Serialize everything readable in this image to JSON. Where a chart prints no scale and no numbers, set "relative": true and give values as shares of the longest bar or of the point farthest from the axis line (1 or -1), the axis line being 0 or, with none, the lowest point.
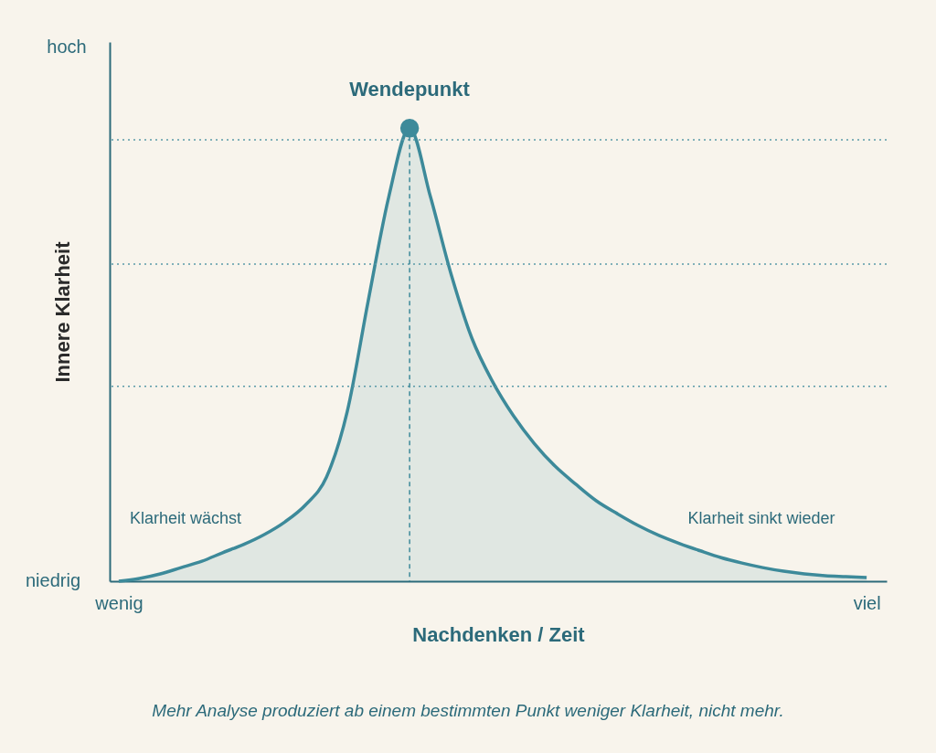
{
  "chart_data": {
    "type": "area",
    "relative": true,
    "xlabel": "Nachdenken / Zeit",
    "ylabel": "Innere Klarheit",
    "categories": [
      "wenig",
      null,
      null,
      null,
      null,
      null,
      null,
      null,
      null,
      null,
      null,
      null,
      null,
      null,
      null,
      null,
      null,
      null,
      null,
      null,
      null,
      null,
      null,
      null,
      null,
      null,
      null,
      null,
      null,
      null,
      null,
      null,
      null,
      null,
      null,
      null,
      "viel"
    ],
    "series": [
      {
        "color": "#3d8a9a",
        "values": [
          0,
          0.006,
          0.016,
          0.03,
          0.044,
          0.063,
          0.081,
          0.103,
          0.131,
          0.169,
          0.23,
          0.375,
          0.617,
          0.849,
          1.0,
          0.849,
          0.677,
          0.536,
          0.44,
          0.365,
          0.304,
          0.254,
          0.214,
          0.177,
          0.149,
          0.123,
          0.101,
          0.083,
          0.067,
          0.052,
          0.04,
          0.03,
          0.022,
          0.016,
          0.012,
          0.01,
          0.008
        ]
      },
      {
        "type": "lollipop",
        "color": "#3d8a9a",
        "line_style": "dashed",
        "marker": "circle",
        "values": [
          null,
          null,
          null,
          null,
          null,
          null,
          null,
          null,
          null,
          null,
          null,
          null,
          null,
          null,
          1.0,
          null,
          null,
          null,
          null,
          null,
          null,
          null,
          null,
          null,
          null,
          null,
          null,
          null,
          null,
          null,
          null,
          null,
          null,
          null,
          null,
          null,
          null
        ]
      }
    ],
    "ref_lines": [
      {
        "axis": "y",
        "value": 0.43,
        "color": "#5a9aa8",
        "line_style": "dotted"
      },
      {
        "axis": "y",
        "value": 0.7,
        "color": "#5a9aa8",
        "line_style": "dotted"
      },
      {
        "axis": "y",
        "value": 0.974,
        "color": "#5a9aa8",
        "line_style": "dotted"
      }
    ],
    "annotations": [
      "niedrig",
      "hoch",
      "Wendepunkt",
      "Klarheit wächst",
      "Klarheit sinkt wieder",
      "Mehr Analyse produziert ab einem bestimmten Punkt weniger Klarheit, nicht mehr."
    ]
  }
}
